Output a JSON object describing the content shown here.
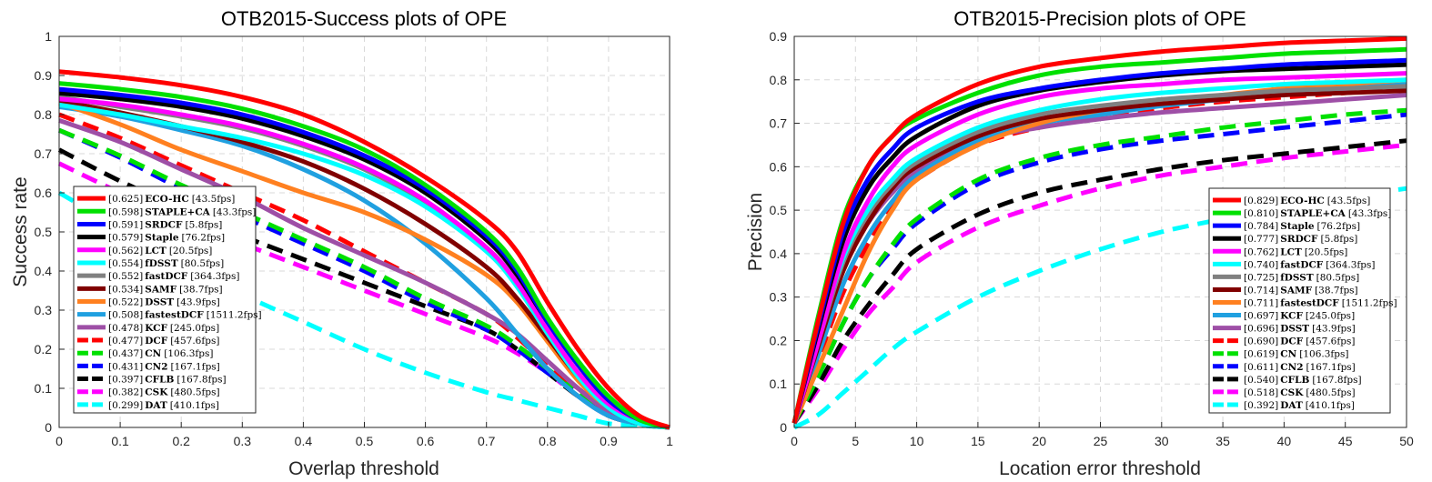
{
  "chart_data": [
    {
      "type": "line",
      "title": "OTB2015-Success plots of OPE",
      "xlabel": "Overlap threshold",
      "ylabel": "Success rate",
      "xlim": [
        0,
        1
      ],
      "ylim": [
        0,
        1
      ],
      "xticks": [
        "0",
        "0.1",
        "0.2",
        "0.3",
        "0.4",
        "0.5",
        "0.6",
        "0.7",
        "0.8",
        "0.9",
        "1"
      ],
      "yticks": [
        "0",
        "0.1",
        "0.2",
        "0.3",
        "0.4",
        "0.5",
        "0.6",
        "0.7",
        "0.8",
        "0.9",
        "1"
      ],
      "grid": true,
      "legend_position": "bottom-left",
      "x": [
        0,
        0.1,
        0.2,
        0.3,
        0.4,
        0.5,
        0.6,
        0.7,
        0.75,
        0.8,
        0.85,
        0.9,
        0.95,
        1
      ],
      "series": [
        {
          "score": "0.625",
          "name": "ECO-HC",
          "fps": "[43.5fps]",
          "color": "#ff0000",
          "dashed": false,
          "values": [
            0.91,
            0.895,
            0.875,
            0.845,
            0.8,
            0.73,
            0.64,
            0.53,
            0.45,
            0.32,
            0.2,
            0.1,
            0.03,
            0
          ]
        },
        {
          "score": "0.598",
          "name": "STAPLE+CA",
          "fps": "[43.3fps]",
          "color": "#00e000",
          "dashed": false,
          "values": [
            0.88,
            0.865,
            0.845,
            0.815,
            0.77,
            0.71,
            0.62,
            0.5,
            0.41,
            0.28,
            0.17,
            0.08,
            0.02,
            0
          ]
        },
        {
          "score": "0.591",
          "name": "SRDCF",
          "fps": "[5.8fps]",
          "color": "#0000ff",
          "dashed": false,
          "values": [
            0.865,
            0.85,
            0.83,
            0.8,
            0.755,
            0.695,
            0.61,
            0.49,
            0.4,
            0.27,
            0.16,
            0.07,
            0.02,
            0
          ]
        },
        {
          "score": "0.579",
          "name": "Staple",
          "fps": "[76.2fps]",
          "color": "#000000",
          "dashed": false,
          "values": [
            0.855,
            0.84,
            0.82,
            0.79,
            0.745,
            0.685,
            0.6,
            0.48,
            0.39,
            0.27,
            0.16,
            0.07,
            0.02,
            0
          ]
        },
        {
          "score": "0.562",
          "name": "LCT",
          "fps": "[20.5fps]",
          "color": "#ff00ff",
          "dashed": false,
          "values": [
            0.84,
            0.825,
            0.8,
            0.77,
            0.725,
            0.665,
            0.58,
            0.46,
            0.37,
            0.25,
            0.14,
            0.06,
            0.02,
            0
          ]
        },
        {
          "score": "0.554",
          "name": "fDSST",
          "fps": "[80.5fps]",
          "color": "#00ffff",
          "dashed": false,
          "values": [
            0.825,
            0.8,
            0.77,
            0.74,
            0.7,
            0.645,
            0.565,
            0.45,
            0.36,
            0.24,
            0.13,
            0.05,
            0.01,
            0
          ]
        },
        {
          "score": "0.552",
          "name": "fastDCF",
          "fps": "[364.3fps]",
          "color": "#808080",
          "dashed": false,
          "values": [
            0.845,
            0.82,
            0.795,
            0.765,
            0.72,
            0.66,
            0.575,
            0.46,
            0.37,
            0.25,
            0.14,
            0.06,
            0.02,
            0
          ]
        },
        {
          "score": "0.534",
          "name": "SAMF",
          "fps": "[38.7fps]",
          "color": "#800000",
          "dashed": false,
          "values": [
            0.835,
            0.805,
            0.77,
            0.73,
            0.68,
            0.61,
            0.52,
            0.41,
            0.33,
            0.23,
            0.13,
            0.05,
            0.01,
            0
          ]
        },
        {
          "score": "0.522",
          "name": "DSST",
          "fps": "[43.9fps]",
          "color": "#ff8020",
          "dashed": false,
          "values": [
            0.83,
            0.775,
            0.71,
            0.655,
            0.6,
            0.55,
            0.48,
            0.39,
            0.32,
            0.22,
            0.12,
            0.05,
            0.01,
            0
          ]
        },
        {
          "score": "0.508",
          "name": "fastestDCF",
          "fps": "[1511.2fps]",
          "color": "#20a0e0",
          "dashed": false,
          "values": [
            0.82,
            0.795,
            0.76,
            0.72,
            0.66,
            0.58,
            0.47,
            0.33,
            0.24,
            0.15,
            0.08,
            0.03,
            0.01,
            0
          ]
        },
        {
          "score": "0.478",
          "name": "KCF",
          "fps": "[245.0fps]",
          "color": "#9e4fa6",
          "dashed": false,
          "values": [
            0.785,
            0.73,
            0.66,
            0.59,
            0.51,
            0.44,
            0.37,
            0.29,
            0.24,
            0.17,
            0.1,
            0.04,
            0.01,
            0
          ]
        },
        {
          "score": "0.477",
          "name": "DCF",
          "fps": "[457.6fps]",
          "color": "#ff0000",
          "dashed": true,
          "values": [
            0.8,
            0.74,
            0.67,
            0.6,
            0.53,
            0.45,
            0.37,
            0.29,
            0.23,
            0.16,
            0.1,
            0.04,
            0.01,
            0
          ]
        },
        {
          "score": "0.437",
          "name": "CN",
          "fps": "[106.3fps]",
          "color": "#00e000",
          "dashed": true,
          "values": [
            0.76,
            0.695,
            0.62,
            0.55,
            0.48,
            0.41,
            0.33,
            0.26,
            0.21,
            0.15,
            0.09,
            0.04,
            0.01,
            0
          ]
        },
        {
          "score": "0.431",
          "name": "CN2",
          "fps": "[167.1fps]",
          "color": "#0000ff",
          "dashed": true,
          "values": [
            0.76,
            0.69,
            0.61,
            0.54,
            0.47,
            0.4,
            0.32,
            0.25,
            0.2,
            0.14,
            0.09,
            0.04,
            0.01,
            0
          ]
        },
        {
          "score": "0.397",
          "name": "CFLB",
          "fps": "[167.8fps]",
          "color": "#000000",
          "dashed": true,
          "values": [
            0.71,
            0.63,
            0.56,
            0.49,
            0.43,
            0.37,
            0.31,
            0.25,
            0.2,
            0.14,
            0.08,
            0.03,
            0.01,
            0
          ]
        },
        {
          "score": "0.382",
          "name": "CSK",
          "fps": "[480.5fps]",
          "color": "#ff00ff",
          "dashed": true,
          "values": [
            0.675,
            0.6,
            0.53,
            0.47,
            0.41,
            0.35,
            0.29,
            0.23,
            0.19,
            0.14,
            0.08,
            0.03,
            0.01,
            0
          ]
        },
        {
          "score": "0.299",
          "name": "DAT",
          "fps": "[410.1fps]",
          "color": "#00ffff",
          "dashed": true,
          "values": [
            0.6,
            0.51,
            0.42,
            0.34,
            0.27,
            0.2,
            0.14,
            0.09,
            0.07,
            0.05,
            0.03,
            0.01,
            0.005,
            0
          ]
        }
      ]
    },
    {
      "type": "line",
      "title": "OTB2015-Precision plots of OPE",
      "xlabel": "Location error threshold",
      "ylabel": "Precision",
      "xlim": [
        0,
        50
      ],
      "ylim": [
        0,
        0.9
      ],
      "xticks": [
        "0",
        "5",
        "10",
        "15",
        "20",
        "25",
        "30",
        "35",
        "40",
        "45",
        "50"
      ],
      "yticks": [
        "0",
        "0.1",
        "0.2",
        "0.3",
        "0.4",
        "0.5",
        "0.6",
        "0.7",
        "0.8",
        "0.9"
      ],
      "grid": true,
      "legend_position": "bottom-right",
      "x": [
        0,
        2,
        4,
        6,
        8,
        10,
        15,
        20,
        25,
        30,
        35,
        40,
        45,
        50
      ],
      "series": [
        {
          "score": "0.829",
          "name": "ECO-HC",
          "fps": "[43.5fps]",
          "color": "#ff0000",
          "dashed": false,
          "values": [
            0.01,
            0.25,
            0.47,
            0.6,
            0.67,
            0.72,
            0.79,
            0.83,
            0.85,
            0.865,
            0.875,
            0.885,
            0.89,
            0.895
          ]
        },
        {
          "score": "0.810",
          "name": "STAPLE+CA",
          "fps": "[43.3fps]",
          "color": "#00e000",
          "dashed": false,
          "values": [
            0.01,
            0.26,
            0.48,
            0.6,
            0.67,
            0.71,
            0.77,
            0.81,
            0.83,
            0.84,
            0.85,
            0.86,
            0.865,
            0.87
          ]
        },
        {
          "score": "0.784",
          "name": "Staple",
          "fps": "[76.2fps]",
          "color": "#0000ff",
          "dashed": false,
          "values": [
            0.01,
            0.24,
            0.45,
            0.57,
            0.64,
            0.69,
            0.75,
            0.78,
            0.8,
            0.815,
            0.825,
            0.835,
            0.84,
            0.845
          ]
        },
        {
          "score": "0.777",
          "name": "SRDCF",
          "fps": "[5.8fps]",
          "color": "#000000",
          "dashed": false,
          "values": [
            0.01,
            0.23,
            0.43,
            0.55,
            0.62,
            0.67,
            0.74,
            0.775,
            0.795,
            0.81,
            0.82,
            0.825,
            0.83,
            0.835
          ]
        },
        {
          "score": "0.762",
          "name": "LCT",
          "fps": "[20.5fps]",
          "color": "#ff00ff",
          "dashed": false,
          "values": [
            0.01,
            0.2,
            0.4,
            0.52,
            0.6,
            0.65,
            0.72,
            0.76,
            0.78,
            0.79,
            0.8,
            0.805,
            0.81,
            0.815
          ]
        },
        {
          "score": "0.740",
          "name": "fastDCF",
          "fps": "[364.3fps]",
          "color": "#00ffff",
          "dashed": false,
          "values": [
            0.01,
            0.21,
            0.39,
            0.5,
            0.57,
            0.62,
            0.69,
            0.73,
            0.755,
            0.77,
            0.78,
            0.79,
            0.795,
            0.8
          ]
        },
        {
          "score": "0.725",
          "name": "fDSST",
          "fps": "[80.5fps]",
          "color": "#808080",
          "dashed": false,
          "values": [
            0.01,
            0.2,
            0.38,
            0.49,
            0.56,
            0.61,
            0.68,
            0.72,
            0.74,
            0.755,
            0.765,
            0.775,
            0.78,
            0.785
          ]
        },
        {
          "score": "0.714",
          "name": "SAMF",
          "fps": "[38.7fps]",
          "color": "#800000",
          "dashed": false,
          "values": [
            0.01,
            0.19,
            0.36,
            0.47,
            0.55,
            0.6,
            0.67,
            0.71,
            0.73,
            0.745,
            0.755,
            0.765,
            0.77,
            0.775
          ]
        },
        {
          "score": "0.711",
          "name": "fastestDCF",
          "fps": "[1511.2fps]",
          "color": "#ff8020",
          "dashed": false,
          "values": [
            0.01,
            0.14,
            0.27,
            0.4,
            0.5,
            0.57,
            0.65,
            0.7,
            0.73,
            0.75,
            0.765,
            0.78,
            0.79,
            0.8
          ]
        },
        {
          "score": "0.697",
          "name": "KCF",
          "fps": "[245.0fps]",
          "color": "#20a0e0",
          "dashed": false,
          "values": [
            0.01,
            0.17,
            0.33,
            0.44,
            0.52,
            0.58,
            0.66,
            0.7,
            0.72,
            0.74,
            0.755,
            0.77,
            0.78,
            0.79
          ]
        },
        {
          "score": "0.696",
          "name": "DSST",
          "fps": "[43.9fps]",
          "color": "#9e4fa6",
          "dashed": false,
          "values": [
            0.01,
            0.2,
            0.37,
            0.47,
            0.54,
            0.59,
            0.66,
            0.69,
            0.71,
            0.725,
            0.735,
            0.745,
            0.755,
            0.765
          ]
        },
        {
          "score": "0.690",
          "name": "DCF",
          "fps": "[457.6fps]",
          "color": "#ff0000",
          "dashed": true,
          "values": [
            0.01,
            0.16,
            0.31,
            0.42,
            0.51,
            0.57,
            0.65,
            0.69,
            0.715,
            0.735,
            0.75,
            0.76,
            0.77,
            0.78
          ]
        },
        {
          "score": "0.619",
          "name": "CN",
          "fps": "[106.3fps]",
          "color": "#00e000",
          "dashed": true,
          "values": [
            0.01,
            0.12,
            0.24,
            0.34,
            0.42,
            0.48,
            0.57,
            0.62,
            0.65,
            0.67,
            0.69,
            0.705,
            0.72,
            0.73
          ]
        },
        {
          "score": "0.611",
          "name": "CN2",
          "fps": "[167.1fps]",
          "color": "#0000ff",
          "dashed": true,
          "values": [
            0.01,
            0.12,
            0.24,
            0.34,
            0.41,
            0.47,
            0.56,
            0.61,
            0.64,
            0.66,
            0.675,
            0.69,
            0.705,
            0.72
          ]
        },
        {
          "score": "0.540",
          "name": "CFLB",
          "fps": "[167.8fps]",
          "color": "#000000",
          "dashed": true,
          "values": [
            0.01,
            0.1,
            0.2,
            0.28,
            0.35,
            0.41,
            0.49,
            0.54,
            0.57,
            0.595,
            0.615,
            0.63,
            0.645,
            0.66
          ]
        },
        {
          "score": "0.518",
          "name": "CSK",
          "fps": "[480.5fps]",
          "color": "#ff00ff",
          "dashed": true,
          "values": [
            0.01,
            0.09,
            0.18,
            0.26,
            0.32,
            0.38,
            0.46,
            0.51,
            0.55,
            0.58,
            0.6,
            0.62,
            0.635,
            0.65
          ]
        },
        {
          "score": "0.392",
          "name": "DAT",
          "fps": "[410.1fps]",
          "color": "#00ffff",
          "dashed": true,
          "values": [
            0.0,
            0.03,
            0.08,
            0.13,
            0.18,
            0.22,
            0.3,
            0.36,
            0.41,
            0.45,
            0.48,
            0.51,
            0.53,
            0.55
          ]
        }
      ]
    }
  ]
}
